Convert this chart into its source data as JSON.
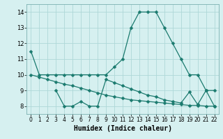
{
  "line1_x": [
    0,
    1,
    2,
    3,
    4,
    5,
    6,
    7,
    8,
    9,
    10,
    11,
    12,
    13,
    14,
    15,
    16,
    17,
    18,
    19,
    20,
    21,
    22
  ],
  "line1_y": [
    11.5,
    10,
    10,
    10,
    10,
    10,
    10,
    10,
    10,
    10,
    10.5,
    11,
    13,
    14,
    14,
    14,
    13,
    12,
    11,
    10,
    10,
    9,
    9
  ],
  "line2_x": [
    3,
    4,
    5,
    6,
    7,
    8,
    9,
    10,
    11,
    12,
    13,
    14,
    15,
    16,
    17,
    18,
    19,
    20,
    21,
    22
  ],
  "line2_y": [
    9,
    8,
    8,
    8.3,
    8,
    8,
    9.7,
    9.5,
    9.3,
    9.1,
    8.9,
    8.7,
    8.6,
    8.4,
    8.3,
    8.2,
    8.9,
    8.1,
    9,
    8
  ],
  "line3_x": [
    0,
    1,
    2,
    3,
    4,
    5,
    6,
    7,
    8,
    9,
    10,
    11,
    12,
    13,
    14,
    15,
    16,
    17,
    18,
    19,
    20,
    21,
    22
  ],
  "line3_y": [
    10.0,
    9.85,
    9.7,
    9.55,
    9.4,
    9.3,
    9.15,
    9.0,
    8.85,
    8.7,
    8.6,
    8.5,
    8.4,
    8.35,
    8.3,
    8.25,
    8.2,
    8.15,
    8.1,
    8.05,
    8.05,
    8.0,
    8.0
  ],
  "line_color": "#1a7a6e",
  "bg_color": "#d6f0f0",
  "grid_color": "#aed8d8",
  "xlabel": "Humidex (Indice chaleur)",
  "ylim": [
    7.5,
    14.5
  ],
  "xlim": [
    -0.5,
    22.5
  ],
  "yticks": [
    8,
    9,
    10,
    11,
    12,
    13,
    14
  ],
  "xticks": [
    0,
    1,
    2,
    3,
    4,
    5,
    6,
    7,
    8,
    9,
    10,
    11,
    12,
    13,
    14,
    15,
    16,
    17,
    18,
    19,
    20,
    21,
    22
  ]
}
